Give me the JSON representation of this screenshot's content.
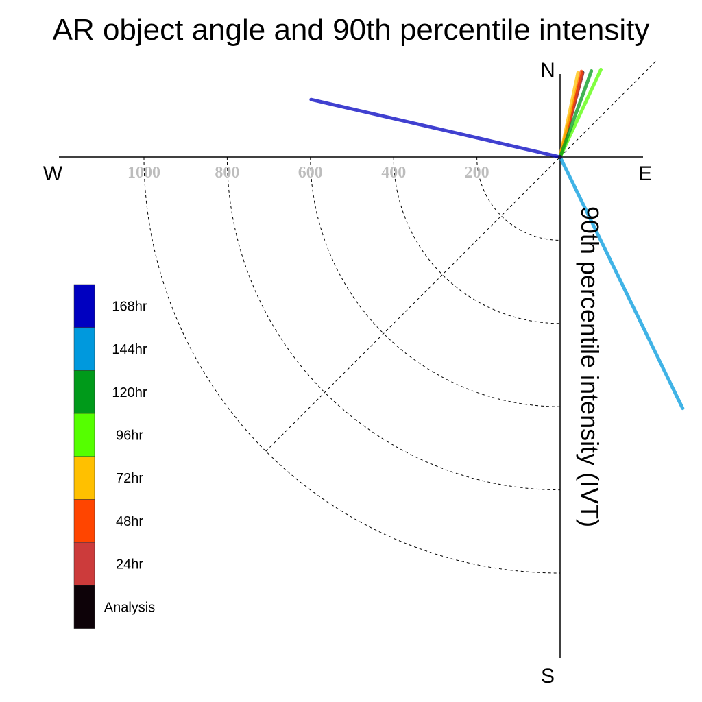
{
  "chart_data": {
    "type": "polar-vector",
    "title": "AR object angle and 90th percentile intensity",
    "ylabel": "90th percentile intensity (IVT)",
    "compass": {
      "north": "N",
      "east": "E",
      "south": "S",
      "west": "W"
    },
    "radial_ticks": [
      200,
      400,
      600,
      800,
      1000
    ],
    "radial_tick_labels": [
      "200",
      "400",
      "600",
      "800",
      "1000"
    ],
    "rmax": 1200,
    "grid": true,
    "legend_position": "left",
    "series": [
      {
        "name": "Analysis",
        "color": "#0d0208",
        "angle_deg": 15,
        "intensity": 210
      },
      {
        "name": "24hr",
        "color": "#cc3b3b",
        "angle_deg": 15,
        "intensity": 208
      },
      {
        "name": "48hr",
        "color": "#ff4500",
        "angle_deg": 14,
        "intensity": 212
      },
      {
        "name": "72hr",
        "color": "#ffc000",
        "angle_deg": 12,
        "intensity": 207
      },
      {
        "name": "96hr",
        "color": "#55ff00",
        "angle_deg": 25,
        "intensity": 232
      },
      {
        "name": "120hr",
        "color": "#009a1a",
        "angle_deg": 20,
        "intensity": 220
      },
      {
        "name": "144hr",
        "color": "#0099dd",
        "angle_deg": 154,
        "intensity": 672
      },
      {
        "name": "168hr",
        "color": "#0000c0",
        "angle_deg": 283,
        "intensity": 614
      }
    ],
    "legend": [
      {
        "label": "168hr",
        "color": "#0000c0"
      },
      {
        "label": "144hr",
        "color": "#0099dd"
      },
      {
        "label": "120hr",
        "color": "#009a1a"
      },
      {
        "label": "96hr",
        "color": "#55ff00"
      },
      {
        "label": "72hr",
        "color": "#ffc000"
      },
      {
        "label": "48hr",
        "color": "#ff4500"
      },
      {
        "label": "24hr",
        "color": "#cc3b3b"
      },
      {
        "label": "Analysis",
        "color": "#0d0208"
      }
    ]
  }
}
